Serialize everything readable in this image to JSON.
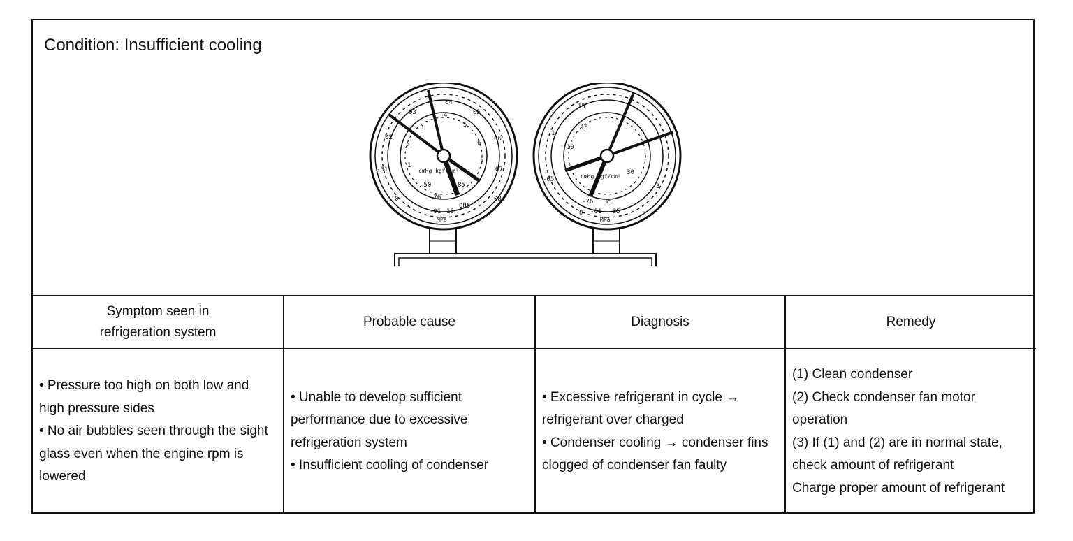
{
  "condition": "Condition: Insufficient cooling",
  "gauges": {
    "low": {
      "outer_scale": [
        "-01",
        "0",
        "01",
        "02",
        "03",
        "04",
        "05",
        "06",
        "07",
        "08",
        "085"
      ],
      "inner_scale": [
        "-76",
        "-50",
        "0",
        "1",
        "2",
        "3",
        "4",
        "5",
        "6",
        "7",
        "85"
      ],
      "unit_text": "cmHg kgf/cm²",
      "unit_bottom": "MPa",
      "bottom_labels": [
        "-01",
        "15",
        "085"
      ]
    },
    "high": {
      "outer_scale": [
        "-05",
        "1",
        "15",
        "2",
        "25",
        "3"
      ],
      "inner_scale": [
        "-76",
        "5",
        "10",
        "15",
        "20",
        "25",
        "30",
        "35"
      ],
      "unit_text": "cmHg kgf/cm²",
      "unit_bottom": "MPa",
      "bottom_labels": [
        "0",
        "-01",
        "35"
      ]
    }
  },
  "table": {
    "headers": [
      "Symptom seen in\nrefrigeration system",
      "Probable cause",
      "Diagnosis",
      "Remedy"
    ],
    "symptom": [
      "• Pressure too high on both low and high pressure sides",
      "• No air bubbles seen through the sight glass even when the engine rpm is lowered"
    ],
    "cause": [
      "• Unable to develop sufficient performance due to excessive refrigeration system",
      "• Insufficient cooling of condenser"
    ],
    "diagnosis": [
      "• Excessive refrigerant in cycle → refrigerant over charged",
      "• Condenser cooling → condenser fins clogged of condenser fan faulty"
    ],
    "remedy": [
      "(1) Clean condenser",
      "(2) Check condenser fan motor operation",
      "(3) If (1) and (2) are in normal state, check amount of refrigerant",
      "Charge proper amount of refrigerant"
    ]
  }
}
